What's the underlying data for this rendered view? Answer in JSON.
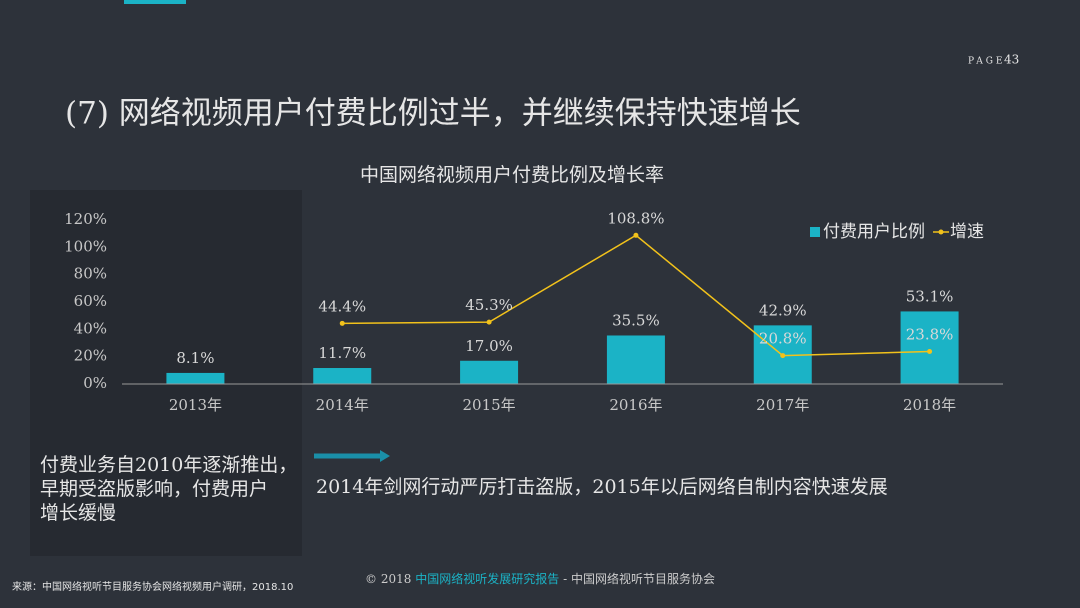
{
  "page": {
    "label": "PAGE",
    "number": "43",
    "title": "(7) 网络视频用户付费比例过半，并继续保持快速增长"
  },
  "chart_data": {
    "type": "bar-line",
    "title": "中国网络视频用户付费比例及增长率",
    "categories": [
      "2013年",
      "2014年",
      "2015年",
      "2016年",
      "2017年",
      "2018年"
    ],
    "series": [
      {
        "name": "付费用户比例",
        "type": "bar",
        "color": "#1bb3c6",
        "values": [
          8.1,
          11.7,
          17.0,
          35.5,
          42.9,
          53.1
        ],
        "value_labels": [
          "8.1%",
          "11.7%",
          "17.0%",
          "35.5%",
          "42.9%",
          "53.1%"
        ]
      },
      {
        "name": "增速",
        "type": "line",
        "color": "#f2c21b",
        "values": [
          null,
          44.4,
          45.3,
          108.8,
          20.8,
          23.8
        ],
        "value_labels": [
          null,
          "44.4%",
          "45.3%",
          "108.8%",
          "20.8%",
          "23.8%"
        ]
      }
    ],
    "ylim": [
      0,
      120
    ],
    "yticks": [
      {
        "value": 0,
        "label": "0%"
      },
      {
        "value": 20,
        "label": "20%"
      },
      {
        "value": 40,
        "label": "40%"
      },
      {
        "value": 60,
        "label": "60%"
      },
      {
        "value": 80,
        "label": "80%"
      },
      {
        "value": 100,
        "label": "100%"
      },
      {
        "value": 120,
        "label": "120%"
      }
    ],
    "grid": false,
    "legend": "top-right"
  },
  "notes": {
    "left": [
      "付费业务自2010年逐渐推出，",
      "早期受盗版影响，付费用户",
      "增长缓慢"
    ],
    "right": "2014年剑网行动严厉打击盗版，2015年以后网络自制内容快速发展"
  },
  "footer": {
    "copyright": "© 2018",
    "report": "中国网络视听发展研究报告",
    "org": "- 中国网络视听节目服务协会",
    "source": "来源：中国网络视听节目服务协会网络视频用户调研，2018.10"
  }
}
